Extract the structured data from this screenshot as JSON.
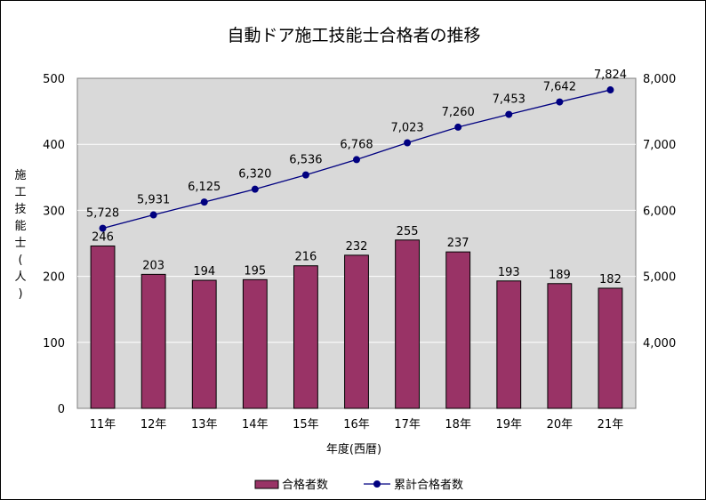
{
  "chart_data": {
    "type": "bar+line",
    "title": "自動ドア施工技能士合格者の推移",
    "xlabel": "年度(西暦)",
    "ylabel": "施工技能士(人)",
    "categories": [
      "11年",
      "12年",
      "13年",
      "14年",
      "15年",
      "16年",
      "17年",
      "18年",
      "19年",
      "20年",
      "21年"
    ],
    "series": [
      {
        "name": "合格者数",
        "type": "bar",
        "axis": "left",
        "color": "#993366",
        "values": [
          246,
          203,
          194,
          195,
          216,
          232,
          255,
          237,
          193,
          189,
          182
        ],
        "labels": [
          "246",
          "203",
          "194",
          "195",
          "216",
          "232",
          "255",
          "237",
          "193",
          "189",
          "182"
        ]
      },
      {
        "name": "累計合格者数",
        "type": "line",
        "axis": "right",
        "color": "#000080",
        "values": [
          5728,
          5931,
          6125,
          6320,
          6536,
          6768,
          7023,
          7260,
          7453,
          7642,
          7824
        ],
        "labels": [
          "5,728",
          "5,931",
          "6,125",
          "6,320",
          "6,536",
          "6,768",
          "7,023",
          "7,260",
          "7,453",
          "7,642",
          "7,824"
        ]
      }
    ],
    "y_left": {
      "min": 0,
      "max": 500,
      "ticks": [
        0,
        100,
        200,
        300,
        400,
        500
      ],
      "tick_labels": [
        "0",
        "100",
        "200",
        "300",
        "400",
        "500"
      ]
    },
    "y_right": {
      "min": 3000,
      "max": 8000,
      "ticks": [
        4000,
        5000,
        6000,
        7000,
        8000
      ],
      "tick_labels": [
        "4,000",
        "5,000",
        "6,000",
        "7,000",
        "8,000"
      ]
    },
    "grid": true,
    "plot_background": "#d9d9d9",
    "legend_position": "bottom"
  }
}
